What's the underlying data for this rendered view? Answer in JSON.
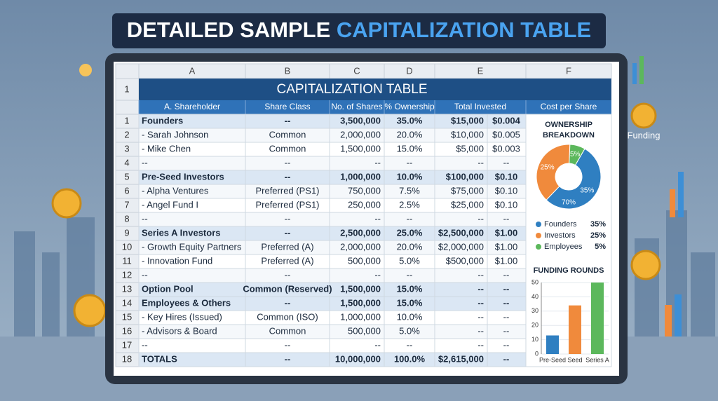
{
  "banner": {
    "title_dark": "DETAILED SAMPLE",
    "title_accent": "CAPITALIZATION TABLE"
  },
  "side_label": "Funding",
  "sheet": {
    "column_letters": [
      "A",
      "B",
      "C",
      "D",
      "E",
      "F"
    ],
    "title_row_number": "1",
    "title": "CAPITALIZATION TABLE",
    "headers": [
      "A. Shareholder",
      "Share Class",
      "No. of Shares",
      "% Ownership",
      "Total Invested",
      "Cost per Share"
    ],
    "rows": [
      {
        "number": "1",
        "bold": true,
        "cells": [
          "Founders",
          "--",
          "3,500,000",
          "35.0%",
          "$15,000",
          "$0.004"
        ]
      },
      {
        "number": "2",
        "bold": false,
        "cells": [
          "- Sarah Johnson",
          "Common",
          "2,000,000",
          "20.0%",
          "$10,000",
          "$0.005"
        ]
      },
      {
        "number": "3",
        "bold": false,
        "cells": [
          "- Mike Chen",
          "Common",
          "1,500,000",
          "15.0%",
          "$5,000",
          "$0.003"
        ]
      },
      {
        "number": "4",
        "bold": false,
        "cells": [
          "--",
          "--",
          "--",
          "--",
          "--",
          "--"
        ]
      },
      {
        "number": "5",
        "bold": true,
        "cells": [
          "Pre-Seed Investors",
          "--",
          "1,000,000",
          "10.0%",
          "$100,000",
          "$0.10"
        ]
      },
      {
        "number": "6",
        "bold": false,
        "cells": [
          "- Alpha Ventures",
          "Preferred (PS1)",
          "750,000",
          "7.5%",
          "$75,000",
          "$0.10"
        ]
      },
      {
        "number": "7",
        "bold": false,
        "cells": [
          "- Angel Fund I",
          "Preferred (PS1)",
          "250,000",
          "2.5%",
          "$25,000",
          "$0.10"
        ]
      },
      {
        "number": "8",
        "bold": false,
        "cells": [
          "--",
          "--",
          "--",
          "--",
          "--",
          "--"
        ]
      },
      {
        "number": "9",
        "bold": true,
        "cells": [
          "Series A Investors",
          "--",
          "2,500,000",
          "25.0%",
          "$2,500,000",
          "$1.00"
        ]
      },
      {
        "number": "10",
        "bold": false,
        "cells": [
          "- Growth Equity Partners",
          "Preferred (A)",
          "2,000,000",
          "20.0%",
          "$2,000,000",
          "$1.00"
        ]
      },
      {
        "number": "11",
        "bold": false,
        "cells": [
          "- Innovation Fund",
          "Preferred (A)",
          "500,000",
          "5.0%",
          "$500,000",
          "$1.00"
        ]
      },
      {
        "number": "12",
        "bold": false,
        "cells": [
          "--",
          "--",
          "--",
          "--",
          "--",
          "--"
        ]
      },
      {
        "number": "13",
        "bold": true,
        "cells": [
          "Option Pool",
          "Common (Reserved)",
          "1,500,000",
          "15.0%",
          "--",
          "--"
        ]
      },
      {
        "number": "14",
        "bold": true,
        "cells": [
          "Employees & Others",
          "--",
          "1,500,000",
          "15.0%",
          "--",
          "--"
        ]
      },
      {
        "number": "15",
        "bold": false,
        "cells": [
          "- Key Hires (Issued)",
          "Common (ISO)",
          "1,000,000",
          "10.0%",
          "--",
          "--"
        ]
      },
      {
        "number": "16",
        "bold": false,
        "cells": [
          "- Advisors & Board",
          "Common",
          "500,000",
          "5.0%",
          "--",
          "--"
        ]
      },
      {
        "number": "17",
        "bold": false,
        "cells": [
          "--",
          "--",
          "--",
          "--",
          "--",
          "--"
        ]
      },
      {
        "number": "18",
        "bold": true,
        "cells": [
          "TOTALS",
          "--",
          "10,000,000",
          "100.0%",
          "$2,615,000",
          "--"
        ]
      }
    ]
  },
  "ownership_chart": {
    "type": "pie",
    "title": "OWNERSHIP BREAKDOWN",
    "categories": [
      "Founders",
      "Investors",
      "Employees"
    ],
    "values": [
      35,
      25,
      5
    ],
    "value_labels": [
      "35%",
      "25%",
      "5%"
    ],
    "colors": [
      "#2f7fc1",
      "#f08a3c",
      "#5cb85c"
    ],
    "annotation": "70%"
  },
  "funding_chart": {
    "type": "bar",
    "title": "FUNDING ROUNDS",
    "categories": [
      "Pre-Seed",
      "Seed",
      "Series A"
    ],
    "values": [
      13,
      34,
      50
    ],
    "colors": [
      "#2f7fc1",
      "#f08a3c",
      "#5cb85c"
    ],
    "ylim": [
      0,
      50
    ],
    "yticks": [
      0,
      10,
      20,
      30,
      40,
      50
    ]
  }
}
